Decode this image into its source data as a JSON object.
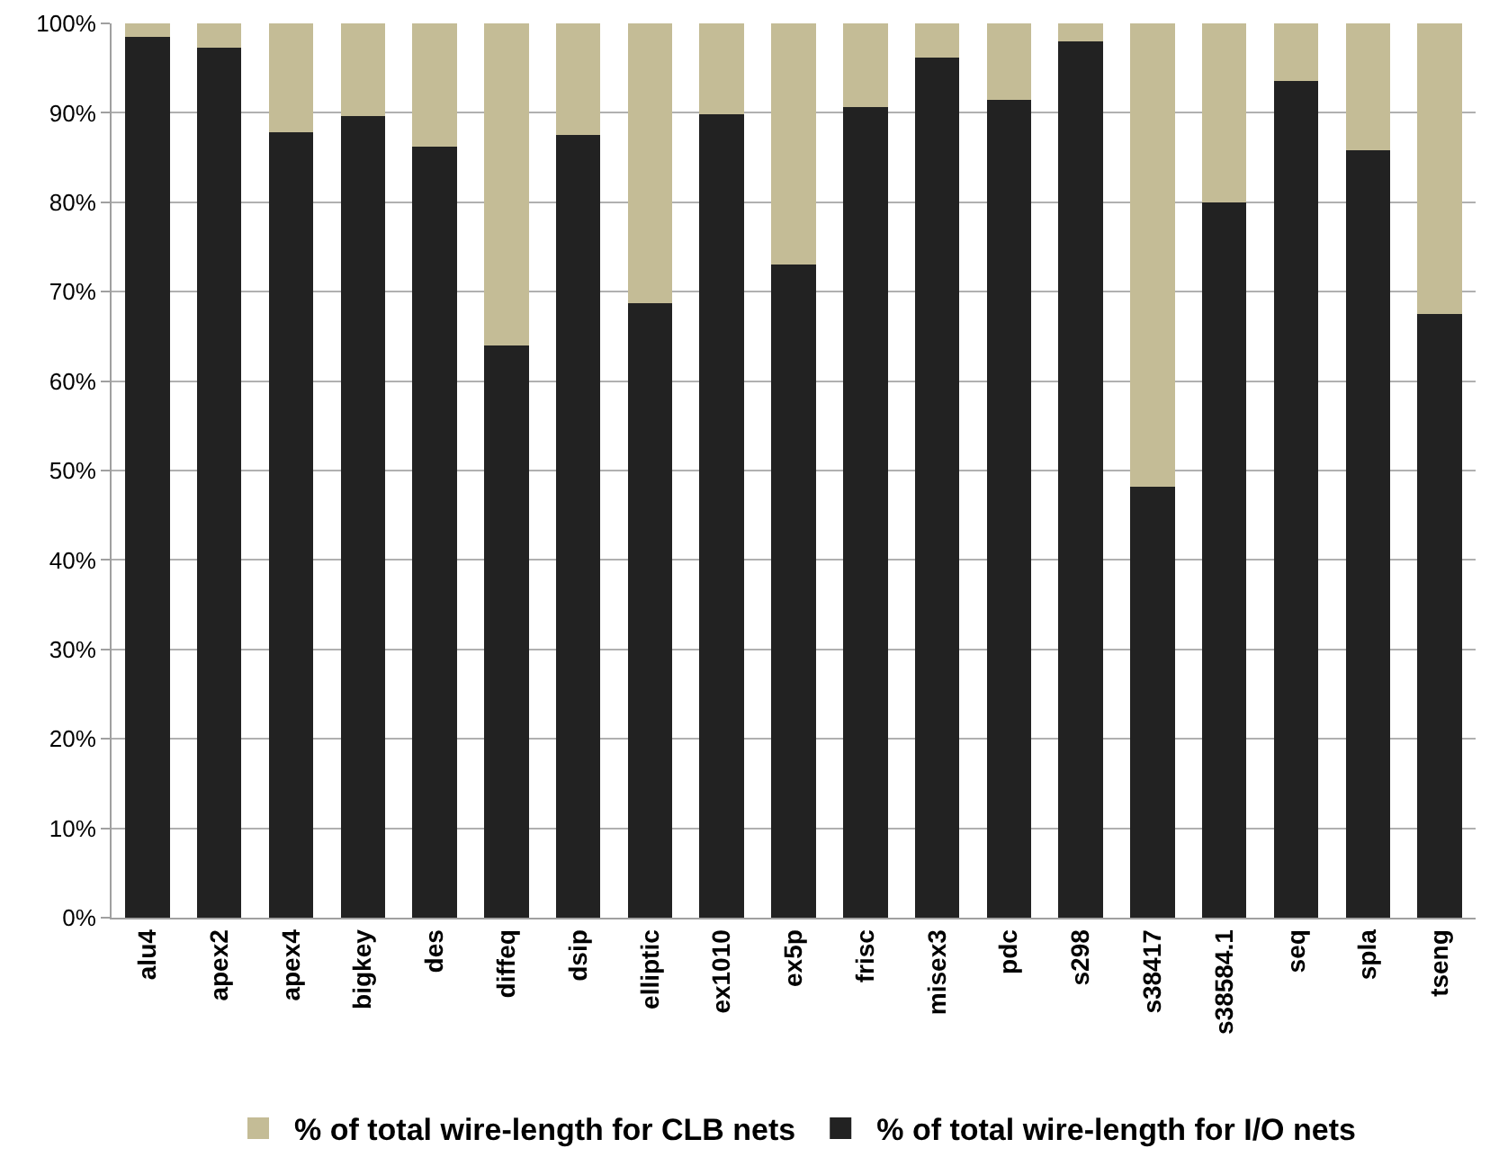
{
  "chart_data": {
    "type": "bar",
    "stacked": true,
    "categories": [
      "alu4",
      "apex2",
      "apex4",
      "bigkey",
      "des",
      "diffeq",
      "dsip",
      "elliptic",
      "ex1010",
      "ex5p",
      "frisc",
      "misex3",
      "pdc",
      "s298",
      "s38417",
      "s38584.1",
      "seq",
      "spla",
      "tseng"
    ],
    "series": [
      {
        "name": "% of total wire-length for I/O nets",
        "color": "#222222",
        "values": [
          98.5,
          97.3,
          87.8,
          89.6,
          86.2,
          64.0,
          87.5,
          68.7,
          89.8,
          73.0,
          90.6,
          96.2,
          91.5,
          98.0,
          48.2,
          80.0,
          93.6,
          85.8,
          67.5
        ]
      },
      {
        "name": "% of total wire-length for CLB nets",
        "color": "#c4bc96",
        "values": [
          1.5,
          2.7,
          12.2,
          10.4,
          13.8,
          36.0,
          12.5,
          31.3,
          10.2,
          27.0,
          9.4,
          3.8,
          8.5,
          2.0,
          51.8,
          20.0,
          6.4,
          14.2,
          32.5
        ]
      }
    ],
    "ylim": [
      0,
      100
    ],
    "yticks": [
      {
        "value": 0,
        "label": "0%"
      },
      {
        "value": 10,
        "label": "10%"
      },
      {
        "value": 20,
        "label": "20%"
      },
      {
        "value": 30,
        "label": "30%"
      },
      {
        "value": 40,
        "label": "40%"
      },
      {
        "value": 50,
        "label": "50%"
      },
      {
        "value": 60,
        "label": "60%"
      },
      {
        "value": 70,
        "label": "70%"
      },
      {
        "value": 80,
        "label": "80%"
      },
      {
        "value": 90,
        "label": "90%"
      },
      {
        "value": 100,
        "label": "100%"
      }
    ],
    "grid": "y",
    "legend": "bottom"
  }
}
